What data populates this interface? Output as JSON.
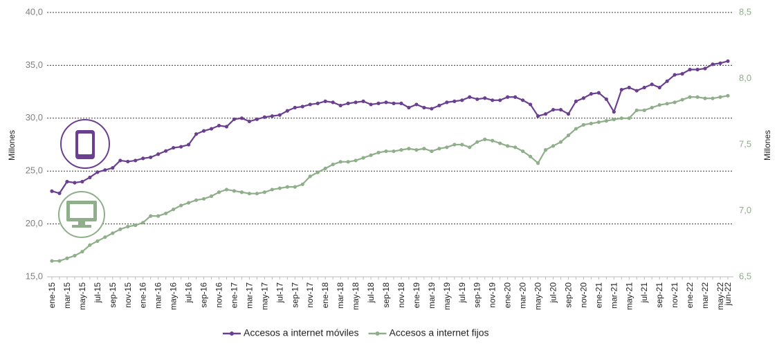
{
  "chart_data": {
    "type": "line",
    "y_label": "Millones",
    "y2_label": "Millones",
    "categories": [
      "ene-15",
      null,
      "mar-15",
      null,
      "may-15",
      null,
      "jul-15",
      null,
      "sep-15",
      null,
      "nov-15",
      null,
      "ene-16",
      null,
      "mar-16",
      null,
      "may-16",
      null,
      "jul-16",
      null,
      "sep-16",
      null,
      "nov-16",
      null,
      "ene-17",
      null,
      "mar-17",
      null,
      "may-17",
      null,
      "jul-17",
      null,
      "sep-17",
      null,
      "nov-17",
      null,
      "ene-18",
      null,
      "mar-18",
      null,
      "may-18",
      null,
      "jul-18",
      null,
      "sep-18",
      null,
      "nov-18",
      null,
      "ene-19",
      null,
      "mar-19",
      null,
      "may-19",
      null,
      "jul-19",
      null,
      "sep-19",
      null,
      "nov-19",
      null,
      "ene-20",
      null,
      "mar-20",
      null,
      "may-20",
      null,
      "jul-20",
      null,
      "sep-20",
      null,
      "nov-20",
      null,
      "ene-21",
      null,
      "mar-21",
      null,
      "may-21",
      null,
      "jul-21",
      null,
      "sep-21",
      null,
      "nov-21",
      null,
      "ene-22",
      null,
      "mar-22",
      null,
      "may-22",
      "jun-22"
    ],
    "series": [
      {
        "name": "Accesos a internet móviles",
        "color": "#6b3f8f",
        "values": [
          23.1,
          22.9,
          24.0,
          23.9,
          24.0,
          24.4,
          24.9,
          25.1,
          25.3,
          26.0,
          25.9,
          26.0,
          26.2,
          26.3,
          26.6,
          26.9,
          27.2,
          27.3,
          27.5,
          28.5,
          28.8,
          29.0,
          29.3,
          29.2,
          29.9,
          30.0,
          29.7,
          29.9,
          30.1,
          30.2,
          30.3,
          30.7,
          31.0,
          31.1,
          31.3,
          31.4,
          31.6,
          31.5,
          31.2,
          31.4,
          31.5,
          31.6,
          31.3,
          31.4,
          31.5,
          31.4,
          31.4,
          31.0,
          31.3,
          31.0,
          30.9,
          31.2,
          31.5,
          31.6,
          31.7,
          32.0,
          31.8,
          31.9,
          31.7,
          31.7,
          32.0,
          32.0,
          31.7,
          31.3,
          30.2,
          30.4,
          30.8,
          30.8,
          30.4,
          31.6,
          31.9,
          32.3,
          32.4,
          31.8,
          30.6,
          32.7,
          32.9,
          32.6,
          32.9,
          33.2,
          32.9,
          33.5,
          34.1,
          34.2,
          34.6,
          34.6,
          34.7,
          35.1,
          35.2,
          35.4
        ]
      },
      {
        "name": "Accesos a internet fijos",
        "color": "#8fae8a",
        "axis": "y2",
        "values": [
          6.62,
          6.62,
          6.64,
          6.66,
          6.69,
          6.74,
          6.77,
          6.8,
          6.83,
          6.86,
          6.88,
          6.89,
          6.91,
          6.96,
          6.96,
          6.98,
          7.01,
          7.04,
          7.06,
          7.08,
          7.09,
          7.11,
          7.14,
          7.16,
          7.15,
          7.14,
          7.13,
          7.13,
          7.14,
          7.16,
          7.17,
          7.18,
          7.18,
          7.2,
          7.26,
          7.29,
          7.32,
          7.35,
          7.37,
          7.37,
          7.38,
          7.4,
          7.42,
          7.44,
          7.45,
          7.45,
          7.46,
          7.47,
          7.46,
          7.47,
          7.45,
          7.47,
          7.48,
          7.5,
          7.5,
          7.48,
          7.52,
          7.54,
          7.53,
          7.51,
          7.49,
          7.48,
          7.45,
          7.41,
          7.36,
          7.46,
          7.49,
          7.52,
          7.57,
          7.62,
          7.65,
          7.66,
          7.67,
          7.68,
          7.69,
          7.7,
          7.7,
          7.76,
          7.76,
          7.78,
          7.8,
          7.81,
          7.82,
          7.84,
          7.86,
          7.86,
          7.85,
          7.85,
          7.86,
          7.87
        ]
      }
    ],
    "ylim": [
      15,
      40
    ],
    "yticks": [
      {
        "value": 15,
        "label": "15,0"
      },
      {
        "value": 20,
        "label": "20,0"
      },
      {
        "value": 25,
        "label": "25,0"
      },
      {
        "value": 30,
        "label": "30,0"
      },
      {
        "value": 35,
        "label": "35,0"
      },
      {
        "value": 40,
        "label": "40,0"
      }
    ],
    "y2lim": [
      6.5,
      8.5
    ],
    "y2ticks": [
      {
        "value": 6.5,
        "label": "6,5"
      },
      {
        "value": 7,
        "label": "7,0"
      },
      {
        "value": 7.5,
        "label": "7,5"
      },
      {
        "value": 8,
        "label": "8,0"
      },
      {
        "value": 8.5,
        "label": "8,5"
      }
    ],
    "grid": true,
    "legend": "bottom"
  }
}
